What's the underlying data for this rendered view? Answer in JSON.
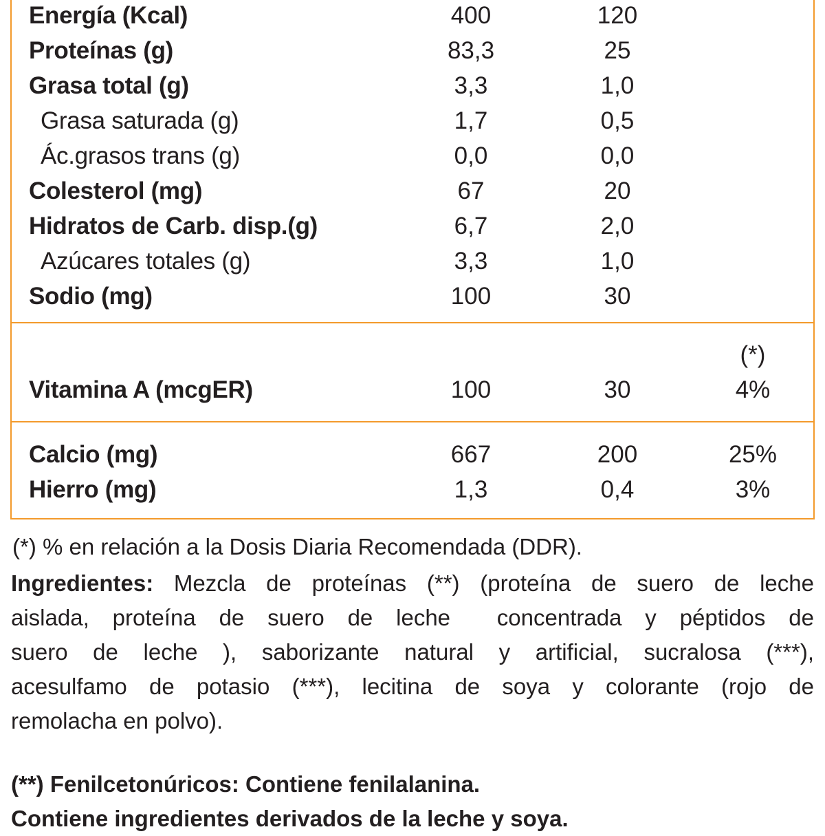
{
  "table": {
    "sections": [
      {
        "rows": [
          {
            "label": "Energía (Kcal)",
            "values": [
              "400",
              "120"
            ]
          },
          {
            "label": "Proteínas (g)",
            "values": [
              "83,3",
              "25"
            ]
          },
          {
            "label": "Grasa total (g)",
            "values": [
              "3,3",
              "1,0"
            ],
            "sub": [
              {
                "label": "Grasa saturada (g)",
                "values": [
                  "1,7",
                  "0,5"
                ]
              },
              {
                "label": "Ác.grasos trans (g)",
                "values": [
                  "0,0",
                  "0,0"
                ]
              }
            ]
          },
          {
            "label": "Colesterol (mg)",
            "values": [
              "67",
              "20"
            ]
          },
          {
            "label": "Hidratos de Carb. disp.(g)",
            "values": [
              "6,7",
              "2,0"
            ],
            "sub": [
              {
                "label": "Azúcares totales (g)",
                "values": [
                  "3,3",
                  "1,0"
                ]
              }
            ]
          },
          {
            "label": "Sodio (mg)",
            "values": [
              "100",
              "30"
            ]
          }
        ]
      },
      {
        "header": "(*)",
        "rows": [
          {
            "label": "Vitamina A (mcgER)",
            "values": [
              "100",
              "30",
              "4%"
            ]
          }
        ]
      },
      {
        "rows": [
          {
            "label": "Calcio (mg)",
            "values": [
              "667",
              "200",
              "25%"
            ]
          },
          {
            "label": "Hierro (mg)",
            "values": [
              "1,3",
              "0,4",
              "3%"
            ]
          }
        ]
      }
    ]
  },
  "footnote": "(*) % en relación a la Dosis Diaria Recomendada (DDR).",
  "ingredients": {
    "label": "Ingredientes:",
    "lines": [
      "Mezcla de proteínas (**) (proteína de suero de leche",
      "aislada, proteína de suero de leche  concentrada y péptidos de",
      "suero de leche ), saborizante natural y artificial, sucralosa (***),",
      "acesulfamo de potasio (***), lecitina de soya y colorante (rojo de",
      "remolacha en polvo)."
    ]
  },
  "notes": [
    "(**) Fenilcetonúricos: Contiene fenilalanina.",
    "Contiene ingredientes derivados de la leche y soya."
  ]
}
